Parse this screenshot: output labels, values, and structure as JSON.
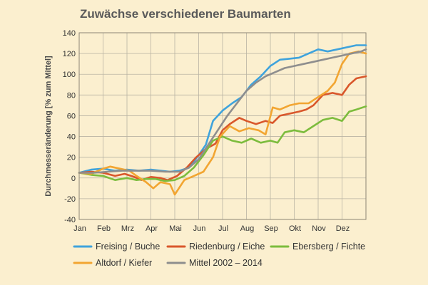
{
  "chart_data": {
    "type": "line",
    "title": "Zuwächse verschiedener Baumarten",
    "ylabel": "Durchmesseränderung [% zum Mittel]",
    "xlabel": "",
    "ylim": [
      -40,
      140
    ],
    "yticks": [
      -40,
      -20,
      0,
      20,
      40,
      60,
      80,
      100,
      120,
      140
    ],
    "xlim": [
      0,
      12
    ],
    "xticks": [
      "Jan",
      "Feb",
      "Mrz",
      "Apr",
      "Mai",
      "Jun",
      "Jul",
      "Aug",
      "Sep",
      "Okt",
      "Nov",
      "Dez"
    ],
    "grid": true,
    "legend_position": "bottom",
    "series": [
      {
        "name": "Freising / Buche",
        "color": "#3fa3dc",
        "points": [
          [
            0,
            5
          ],
          [
            0.5,
            8
          ],
          [
            1,
            9
          ],
          [
            1.5,
            7
          ],
          [
            2,
            8
          ],
          [
            2.5,
            7
          ],
          [
            3,
            8
          ],
          [
            3.4,
            7
          ],
          [
            3.8,
            6
          ],
          [
            4.2,
            7
          ],
          [
            4.6,
            10
          ],
          [
            5,
            22
          ],
          [
            5.3,
            32
          ],
          [
            5.6,
            55
          ],
          [
            6,
            65
          ],
          [
            6.4,
            72
          ],
          [
            6.8,
            78
          ],
          [
            7.2,
            90
          ],
          [
            7.6,
            98
          ],
          [
            8,
            108
          ],
          [
            8.4,
            114
          ],
          [
            8.8,
            115
          ],
          [
            9.2,
            116
          ],
          [
            9.6,
            120
          ],
          [
            10,
            124
          ],
          [
            10.4,
            122
          ],
          [
            10.8,
            124
          ],
          [
            11.2,
            126
          ],
          [
            11.6,
            128
          ],
          [
            12,
            128
          ]
        ]
      },
      {
        "name": "Riedenburg / Eiche",
        "color": "#d9572b",
        "points": [
          [
            0,
            5
          ],
          [
            0.5,
            6
          ],
          [
            1,
            5
          ],
          [
            1.5,
            2
          ],
          [
            1.9,
            4
          ],
          [
            2.3,
            1
          ],
          [
            2.6,
            -2
          ],
          [
            3,
            1
          ],
          [
            3.4,
            0
          ],
          [
            3.7,
            -2
          ],
          [
            4.1,
            2
          ],
          [
            4.5,
            10
          ],
          [
            4.9,
            20
          ],
          [
            5.3,
            28
          ],
          [
            5.7,
            33
          ],
          [
            6,
            46
          ],
          [
            6.3,
            52
          ],
          [
            6.7,
            58
          ],
          [
            7,
            55
          ],
          [
            7.4,
            52
          ],
          [
            7.8,
            55
          ],
          [
            8.1,
            53
          ],
          [
            8.4,
            60
          ],
          [
            8.8,
            62
          ],
          [
            9.2,
            64
          ],
          [
            9.5,
            66
          ],
          [
            9.8,
            70
          ],
          [
            10.2,
            80
          ],
          [
            10.6,
            82
          ],
          [
            11,
            80
          ],
          [
            11.3,
            90
          ],
          [
            11.6,
            96
          ],
          [
            12,
            98
          ]
        ]
      },
      {
        "name": "Ebersberg / Fichte",
        "color": "#7cbc3d",
        "points": [
          [
            0,
            5
          ],
          [
            0.5,
            3
          ],
          [
            1,
            2
          ],
          [
            1.5,
            -2
          ],
          [
            2,
            0
          ],
          [
            2.4,
            -2
          ],
          [
            2.8,
            -1
          ],
          [
            3.2,
            -1
          ],
          [
            3.6,
            -3
          ],
          [
            4,
            -2
          ],
          [
            4.4,
            2
          ],
          [
            4.8,
            10
          ],
          [
            5.2,
            22
          ],
          [
            5.6,
            36
          ],
          [
            6,
            40
          ],
          [
            6.4,
            36
          ],
          [
            6.8,
            34
          ],
          [
            7.2,
            38
          ],
          [
            7.6,
            34
          ],
          [
            8,
            36
          ],
          [
            8.3,
            34
          ],
          [
            8.6,
            44
          ],
          [
            9,
            46
          ],
          [
            9.4,
            44
          ],
          [
            9.8,
            50
          ],
          [
            10.2,
            56
          ],
          [
            10.6,
            58
          ],
          [
            11,
            55
          ],
          [
            11.3,
            64
          ],
          [
            11.6,
            66
          ],
          [
            12,
            69
          ]
        ]
      },
      {
        "name": "Altdorf / Kiefer",
        "color": "#f2a531",
        "points": [
          [
            0,
            5
          ],
          [
            0.5,
            4
          ],
          [
            1,
            9
          ],
          [
            1.3,
            11
          ],
          [
            1.7,
            9
          ],
          [
            2.1,
            7
          ],
          [
            2.4,
            2
          ],
          [
            2.8,
            -4
          ],
          [
            3.1,
            -10
          ],
          [
            3.4,
            -4
          ],
          [
            3.8,
            -6
          ],
          [
            4,
            -16
          ],
          [
            4.4,
            -2
          ],
          [
            4.8,
            2
          ],
          [
            5.2,
            6
          ],
          [
            5.6,
            20
          ],
          [
            5.9,
            40
          ],
          [
            6.3,
            50
          ],
          [
            6.7,
            45
          ],
          [
            7.1,
            48
          ],
          [
            7.5,
            46
          ],
          [
            7.8,
            42
          ],
          [
            8.1,
            68
          ],
          [
            8.4,
            66
          ],
          [
            8.8,
            70
          ],
          [
            9.2,
            72
          ],
          [
            9.6,
            72
          ],
          [
            10,
            78
          ],
          [
            10.4,
            84
          ],
          [
            10.7,
            92
          ],
          [
            11,
            110
          ],
          [
            11.3,
            120
          ],
          [
            11.7,
            122
          ],
          [
            12,
            120
          ]
        ]
      },
      {
        "name": "Mittel 2002 – 2014",
        "color": "#8e8e8e",
        "points": [
          [
            0,
            5
          ],
          [
            0.6,
            5
          ],
          [
            1.2,
            6
          ],
          [
            1.8,
            7
          ],
          [
            2.4,
            7
          ],
          [
            3,
            7
          ],
          [
            3.6,
            6
          ],
          [
            4.2,
            6
          ],
          [
            4.6,
            10
          ],
          [
            5,
            18
          ],
          [
            5.4,
            32
          ],
          [
            5.8,
            46
          ],
          [
            6.2,
            60
          ],
          [
            6.6,
            72
          ],
          [
            7,
            84
          ],
          [
            7.4,
            92
          ],
          [
            7.8,
            98
          ],
          [
            8.2,
            102
          ],
          [
            8.6,
            106
          ],
          [
            9,
            108
          ],
          [
            9.4,
            110
          ],
          [
            9.8,
            112
          ],
          [
            10.2,
            114
          ],
          [
            10.6,
            116
          ],
          [
            11,
            118
          ],
          [
            11.4,
            120
          ],
          [
            11.8,
            122
          ],
          [
            12,
            124
          ]
        ]
      }
    ]
  }
}
